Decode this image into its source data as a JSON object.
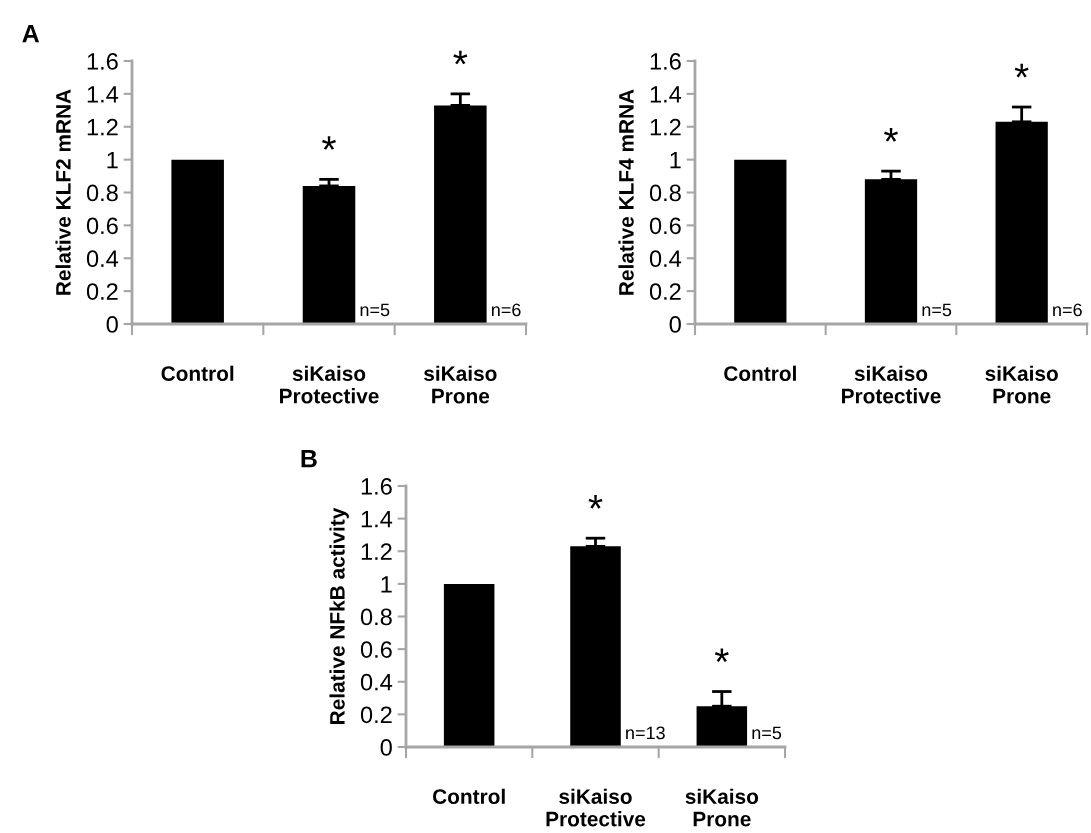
{
  "chart_data": [
    {
      "type": "bar",
      "title": "A",
      "ylabel": "Relative KLF2 mRNA",
      "categories": [
        "Control",
        "siKaiso\nProtective",
        "siKaiso\nProne"
      ],
      "series": [
        {
          "color": "#000000",
          "values": [
            1.0,
            0.84,
            1.33
          ],
          "errors": [
            null,
            [
              0.84,
              0.88
            ],
            [
              1.33,
              1.4
            ]
          ]
        }
      ],
      "ylim": [
        0,
        1.6
      ],
      "yticks": [
        0,
        0.2,
        0.4,
        0.6,
        0.8,
        1,
        1.2,
        1.4,
        1.6
      ],
      "grid": false,
      "legend": false,
      "annotations": [
        "*",
        "*",
        {
          "text": "n=5",
          "x": "siKaiso\nProtective",
          "y": 0
        },
        {
          "text": "n=6",
          "x": "siKaiso\nProne",
          "y": 0
        }
      ]
    },
    {
      "type": "bar",
      "ylabel": "Relative KLF4 mRNA",
      "categories": [
        "Control",
        "siKaiso\nProtective",
        "siKaiso\nProne"
      ],
      "series": [
        {
          "color": "#000000",
          "values": [
            1.0,
            0.88,
            1.23
          ],
          "errors": [
            null,
            [
              0.88,
              0.93
            ],
            [
              1.23,
              1.32
            ]
          ]
        }
      ],
      "ylim": [
        0,
        1.6
      ],
      "yticks": [
        0,
        0.2,
        0.4,
        0.6,
        0.8,
        1,
        1.2,
        1.4,
        1.6
      ],
      "grid": false,
      "legend": false,
      "annotations": [
        "*",
        "*",
        {
          "text": "n=5",
          "x": "siKaiso\nProtective",
          "y": 0
        },
        {
          "text": "n=6",
          "x": "siKaiso\nProne",
          "y": 0
        }
      ]
    },
    {
      "type": "bar",
      "title": "B",
      "ylabel": "Relative NFkB activity",
      "categories": [
        "Control",
        "siKaiso\nProtective",
        "siKaiso\nProne"
      ],
      "series": [
        {
          "color": "#000000",
          "values": [
            1.0,
            1.23,
            0.25
          ],
          "errors": [
            null,
            [
              1.23,
              1.28
            ],
            [
              0.25,
              0.34
            ]
          ]
        }
      ],
      "ylim": [
        0,
        1.6
      ],
      "yticks": [
        0,
        0.2,
        0.4,
        0.6,
        0.8,
        1,
        1.2,
        1.4,
        1.6
      ],
      "grid": false,
      "legend": false,
      "annotations": [
        "*",
        "*",
        {
          "text": "n=13",
          "x": "siKaiso\nProtective",
          "y": 0
        },
        {
          "text": "n=5",
          "x": "siKaiso\nProne",
          "y": 0
        }
      ]
    }
  ]
}
